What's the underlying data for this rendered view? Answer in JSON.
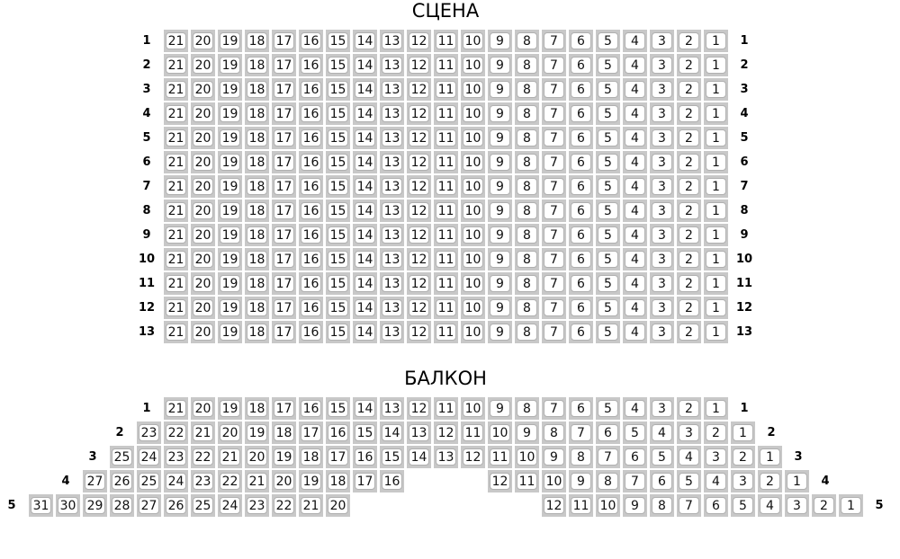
{
  "colors": {
    "seat_frame": "#c8c8c8",
    "seat_face": "#ffffff"
  },
  "sections": [
    {
      "title": "СЦЕНА",
      "rows": [
        {
          "label": "1",
          "seats": [
            21,
            20,
            19,
            18,
            17,
            16,
            15,
            14,
            13,
            12,
            11,
            10,
            9,
            8,
            7,
            6,
            5,
            4,
            3,
            2,
            1
          ]
        },
        {
          "label": "2",
          "seats": [
            21,
            20,
            19,
            18,
            17,
            16,
            15,
            14,
            13,
            12,
            11,
            10,
            9,
            8,
            7,
            6,
            5,
            4,
            3,
            2,
            1
          ]
        },
        {
          "label": "3",
          "seats": [
            21,
            20,
            19,
            18,
            17,
            16,
            15,
            14,
            13,
            12,
            11,
            10,
            9,
            8,
            7,
            6,
            5,
            4,
            3,
            2,
            1
          ]
        },
        {
          "label": "4",
          "seats": [
            21,
            20,
            19,
            18,
            17,
            16,
            15,
            14,
            13,
            12,
            11,
            10,
            9,
            8,
            7,
            6,
            5,
            4,
            3,
            2,
            1
          ]
        },
        {
          "label": "5",
          "seats": [
            21,
            20,
            19,
            18,
            17,
            16,
            15,
            14,
            13,
            12,
            11,
            10,
            9,
            8,
            7,
            6,
            5,
            4,
            3,
            2,
            1
          ]
        },
        {
          "label": "6",
          "seats": [
            21,
            20,
            19,
            18,
            17,
            16,
            15,
            14,
            13,
            12,
            11,
            10,
            9,
            8,
            7,
            6,
            5,
            4,
            3,
            2,
            1
          ]
        },
        {
          "label": "7",
          "seats": [
            21,
            20,
            19,
            18,
            17,
            16,
            15,
            14,
            13,
            12,
            11,
            10,
            9,
            8,
            7,
            6,
            5,
            4,
            3,
            2,
            1
          ]
        },
        {
          "label": "8",
          "seats": [
            21,
            20,
            19,
            18,
            17,
            16,
            15,
            14,
            13,
            12,
            11,
            10,
            9,
            8,
            7,
            6,
            5,
            4,
            3,
            2,
            1
          ]
        },
        {
          "label": "9",
          "seats": [
            21,
            20,
            19,
            18,
            17,
            16,
            15,
            14,
            13,
            12,
            11,
            10,
            9,
            8,
            7,
            6,
            5,
            4,
            3,
            2,
            1
          ]
        },
        {
          "label": "10",
          "seats": [
            21,
            20,
            19,
            18,
            17,
            16,
            15,
            14,
            13,
            12,
            11,
            10,
            9,
            8,
            7,
            6,
            5,
            4,
            3,
            2,
            1
          ]
        },
        {
          "label": "11",
          "seats": [
            21,
            20,
            19,
            18,
            17,
            16,
            15,
            14,
            13,
            12,
            11,
            10,
            9,
            8,
            7,
            6,
            5,
            4,
            3,
            2,
            1
          ]
        },
        {
          "label": "12",
          "seats": [
            21,
            20,
            19,
            18,
            17,
            16,
            15,
            14,
            13,
            12,
            11,
            10,
            9,
            8,
            7,
            6,
            5,
            4,
            3,
            2,
            1
          ]
        },
        {
          "label": "13",
          "seats": [
            21,
            20,
            19,
            18,
            17,
            16,
            15,
            14,
            13,
            12,
            11,
            10,
            9,
            8,
            7,
            6,
            5,
            4,
            3,
            2,
            1
          ]
        }
      ]
    },
    {
      "title": "БАЛКОН",
      "rows": [
        {
          "label": "1",
          "seats": [
            21,
            20,
            19,
            18,
            17,
            16,
            15,
            14,
            13,
            12,
            11,
            10,
            9,
            8,
            7,
            6,
            5,
            4,
            3,
            2,
            1
          ]
        },
        {
          "label": "2",
          "seats": [
            23,
            22,
            21,
            20,
            19,
            18,
            17,
            16,
            15,
            14,
            13,
            12,
            11,
            10,
            9,
            8,
            7,
            6,
            5,
            4,
            3,
            2,
            1
          ]
        },
        {
          "label": "3",
          "seats": [
            25,
            24,
            23,
            22,
            21,
            20,
            19,
            18,
            17,
            16,
            15,
            14,
            13,
            12,
            11,
            10,
            9,
            8,
            7,
            6,
            5,
            4,
            3,
            2,
            1
          ]
        },
        {
          "label": "4",
          "seats": [
            27,
            26,
            25,
            24,
            23,
            22,
            21,
            20,
            19,
            18,
            17,
            16,
            null,
            null,
            null,
            12,
            11,
            10,
            9,
            8,
            7,
            6,
            5,
            4,
            3,
            2,
            1
          ]
        },
        {
          "label": "5",
          "seats": [
            31,
            30,
            29,
            28,
            27,
            26,
            25,
            24,
            23,
            22,
            21,
            20,
            null,
            null,
            null,
            null,
            null,
            null,
            null,
            12,
            11,
            10,
            9,
            8,
            7,
            6,
            5,
            4,
            3,
            2,
            1
          ]
        }
      ]
    }
  ]
}
